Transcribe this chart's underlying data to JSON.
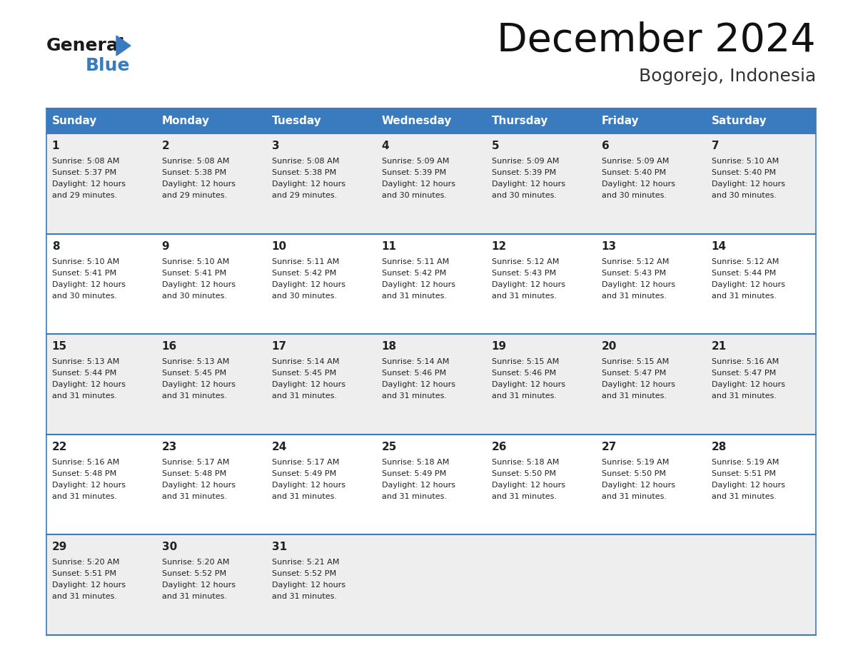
{
  "title": "December 2024",
  "subtitle": "Bogorejo, Indonesia",
  "header_color": "#3a7bbf",
  "header_text_color": "#ffffff",
  "cell_bg_odd": "#eeeeee",
  "cell_bg_even": "#ffffff",
  "border_color": "#3a7bbf",
  "text_color": "#222222",
  "day_headers": [
    "Sunday",
    "Monday",
    "Tuesday",
    "Wednesday",
    "Thursday",
    "Friday",
    "Saturday"
  ],
  "days": [
    {
      "day": 1,
      "col": 0,
      "row": 0,
      "sunrise": "5:08 AM",
      "sunset": "5:37 PM",
      "daylight_h": "12 hours",
      "daylight_m": "29 minutes."
    },
    {
      "day": 2,
      "col": 1,
      "row": 0,
      "sunrise": "5:08 AM",
      "sunset": "5:38 PM",
      "daylight_h": "12 hours",
      "daylight_m": "29 minutes."
    },
    {
      "day": 3,
      "col": 2,
      "row": 0,
      "sunrise": "5:08 AM",
      "sunset": "5:38 PM",
      "daylight_h": "12 hours",
      "daylight_m": "29 minutes."
    },
    {
      "day": 4,
      "col": 3,
      "row": 0,
      "sunrise": "5:09 AM",
      "sunset": "5:39 PM",
      "daylight_h": "12 hours",
      "daylight_m": "30 minutes."
    },
    {
      "day": 5,
      "col": 4,
      "row": 0,
      "sunrise": "5:09 AM",
      "sunset": "5:39 PM",
      "daylight_h": "12 hours",
      "daylight_m": "30 minutes."
    },
    {
      "day": 6,
      "col": 5,
      "row": 0,
      "sunrise": "5:09 AM",
      "sunset": "5:40 PM",
      "daylight_h": "12 hours",
      "daylight_m": "30 minutes."
    },
    {
      "day": 7,
      "col": 6,
      "row": 0,
      "sunrise": "5:10 AM",
      "sunset": "5:40 PM",
      "daylight_h": "12 hours",
      "daylight_m": "30 minutes."
    },
    {
      "day": 8,
      "col": 0,
      "row": 1,
      "sunrise": "5:10 AM",
      "sunset": "5:41 PM",
      "daylight_h": "12 hours",
      "daylight_m": "30 minutes."
    },
    {
      "day": 9,
      "col": 1,
      "row": 1,
      "sunrise": "5:10 AM",
      "sunset": "5:41 PM",
      "daylight_h": "12 hours",
      "daylight_m": "30 minutes."
    },
    {
      "day": 10,
      "col": 2,
      "row": 1,
      "sunrise": "5:11 AM",
      "sunset": "5:42 PM",
      "daylight_h": "12 hours",
      "daylight_m": "30 minutes."
    },
    {
      "day": 11,
      "col": 3,
      "row": 1,
      "sunrise": "5:11 AM",
      "sunset": "5:42 PM",
      "daylight_h": "12 hours",
      "daylight_m": "31 minutes."
    },
    {
      "day": 12,
      "col": 4,
      "row": 1,
      "sunrise": "5:12 AM",
      "sunset": "5:43 PM",
      "daylight_h": "12 hours",
      "daylight_m": "31 minutes."
    },
    {
      "day": 13,
      "col": 5,
      "row": 1,
      "sunrise": "5:12 AM",
      "sunset": "5:43 PM",
      "daylight_h": "12 hours",
      "daylight_m": "31 minutes."
    },
    {
      "day": 14,
      "col": 6,
      "row": 1,
      "sunrise": "5:12 AM",
      "sunset": "5:44 PM",
      "daylight_h": "12 hours",
      "daylight_m": "31 minutes."
    },
    {
      "day": 15,
      "col": 0,
      "row": 2,
      "sunrise": "5:13 AM",
      "sunset": "5:44 PM",
      "daylight_h": "12 hours",
      "daylight_m": "31 minutes."
    },
    {
      "day": 16,
      "col": 1,
      "row": 2,
      "sunrise": "5:13 AM",
      "sunset": "5:45 PM",
      "daylight_h": "12 hours",
      "daylight_m": "31 minutes."
    },
    {
      "day": 17,
      "col": 2,
      "row": 2,
      "sunrise": "5:14 AM",
      "sunset": "5:45 PM",
      "daylight_h": "12 hours",
      "daylight_m": "31 minutes."
    },
    {
      "day": 18,
      "col": 3,
      "row": 2,
      "sunrise": "5:14 AM",
      "sunset": "5:46 PM",
      "daylight_h": "12 hours",
      "daylight_m": "31 minutes."
    },
    {
      "day": 19,
      "col": 4,
      "row": 2,
      "sunrise": "5:15 AM",
      "sunset": "5:46 PM",
      "daylight_h": "12 hours",
      "daylight_m": "31 minutes."
    },
    {
      "day": 20,
      "col": 5,
      "row": 2,
      "sunrise": "5:15 AM",
      "sunset": "5:47 PM",
      "daylight_h": "12 hours",
      "daylight_m": "31 minutes."
    },
    {
      "day": 21,
      "col": 6,
      "row": 2,
      "sunrise": "5:16 AM",
      "sunset": "5:47 PM",
      "daylight_h": "12 hours",
      "daylight_m": "31 minutes."
    },
    {
      "day": 22,
      "col": 0,
      "row": 3,
      "sunrise": "5:16 AM",
      "sunset": "5:48 PM",
      "daylight_h": "12 hours",
      "daylight_m": "31 minutes."
    },
    {
      "day": 23,
      "col": 1,
      "row": 3,
      "sunrise": "5:17 AM",
      "sunset": "5:48 PM",
      "daylight_h": "12 hours",
      "daylight_m": "31 minutes."
    },
    {
      "day": 24,
      "col": 2,
      "row": 3,
      "sunrise": "5:17 AM",
      "sunset": "5:49 PM",
      "daylight_h": "12 hours",
      "daylight_m": "31 minutes."
    },
    {
      "day": 25,
      "col": 3,
      "row": 3,
      "sunrise": "5:18 AM",
      "sunset": "5:49 PM",
      "daylight_h": "12 hours",
      "daylight_m": "31 minutes."
    },
    {
      "day": 26,
      "col": 4,
      "row": 3,
      "sunrise": "5:18 AM",
      "sunset": "5:50 PM",
      "daylight_h": "12 hours",
      "daylight_m": "31 minutes."
    },
    {
      "day": 27,
      "col": 5,
      "row": 3,
      "sunrise": "5:19 AM",
      "sunset": "5:50 PM",
      "daylight_h": "12 hours",
      "daylight_m": "31 minutes."
    },
    {
      "day": 28,
      "col": 6,
      "row": 3,
      "sunrise": "5:19 AM",
      "sunset": "5:51 PM",
      "daylight_h": "12 hours",
      "daylight_m": "31 minutes."
    },
    {
      "day": 29,
      "col": 0,
      "row": 4,
      "sunrise": "5:20 AM",
      "sunset": "5:51 PM",
      "daylight_h": "12 hours",
      "daylight_m": "31 minutes."
    },
    {
      "day": 30,
      "col": 1,
      "row": 4,
      "sunrise": "5:20 AM",
      "sunset": "5:52 PM",
      "daylight_h": "12 hours",
      "daylight_m": "31 minutes."
    },
    {
      "day": 31,
      "col": 2,
      "row": 4,
      "sunrise": "5:21 AM",
      "sunset": "5:52 PM",
      "daylight_h": "12 hours",
      "daylight_m": "31 minutes."
    }
  ],
  "num_rows": 5,
  "logo_black_color": "#1a1a1a",
  "logo_blue_color": "#3a7bbf",
  "title_fontsize": 40,
  "subtitle_fontsize": 18,
  "header_fontsize": 11,
  "day_num_fontsize": 11,
  "cell_text_fontsize": 8
}
